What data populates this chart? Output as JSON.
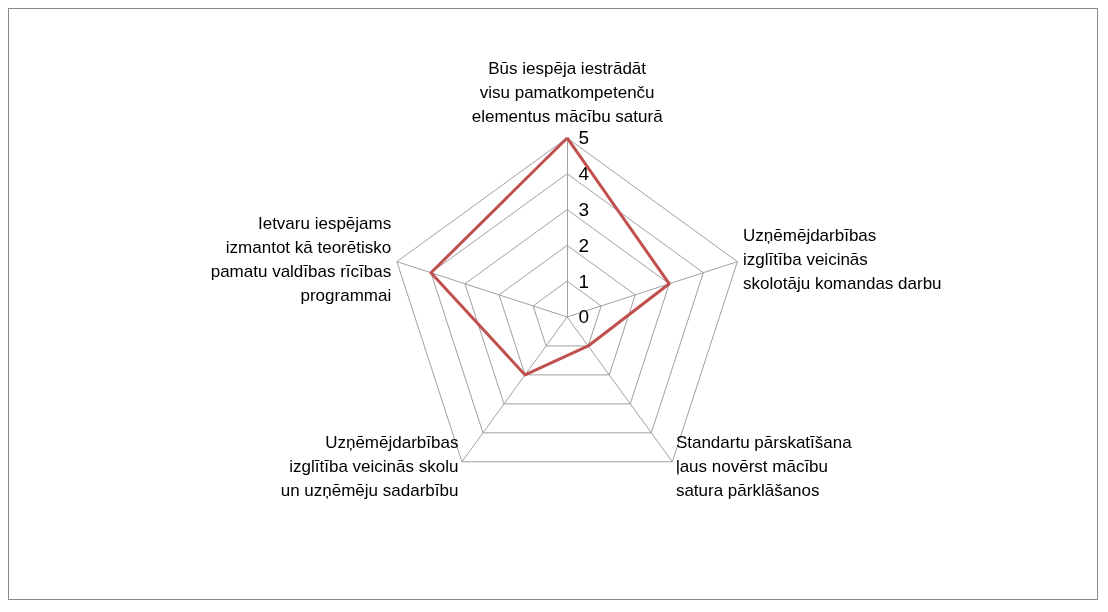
{
  "chart_data": {
    "type": "radar",
    "categories": [
      "Būs iespēja iestrādāt visu pamatkompetenču elementus mācību saturā",
      "Uzņēmējdarbības izglītība veicinās skolotāju komandas darbu",
      "Standartu pārskatīšana ļaus novērst mācību satura pārklāšanos",
      "Uzņēmējdarbības izglītība veicinās skolu un uzņēmēju sadarbību",
      "Ietvaru iespējams izmantot kā teorētisko pamatu valdības rīcības programmai"
    ],
    "series": [
      {
        "color": "#c0504d",
        "values": [
          5,
          3,
          1,
          2,
          4
        ]
      }
    ],
    "ylim": [
      0,
      5
    ],
    "yticks": [
      0,
      1,
      2,
      3,
      4,
      5
    ],
    "grid": true,
    "marker": "none"
  }
}
